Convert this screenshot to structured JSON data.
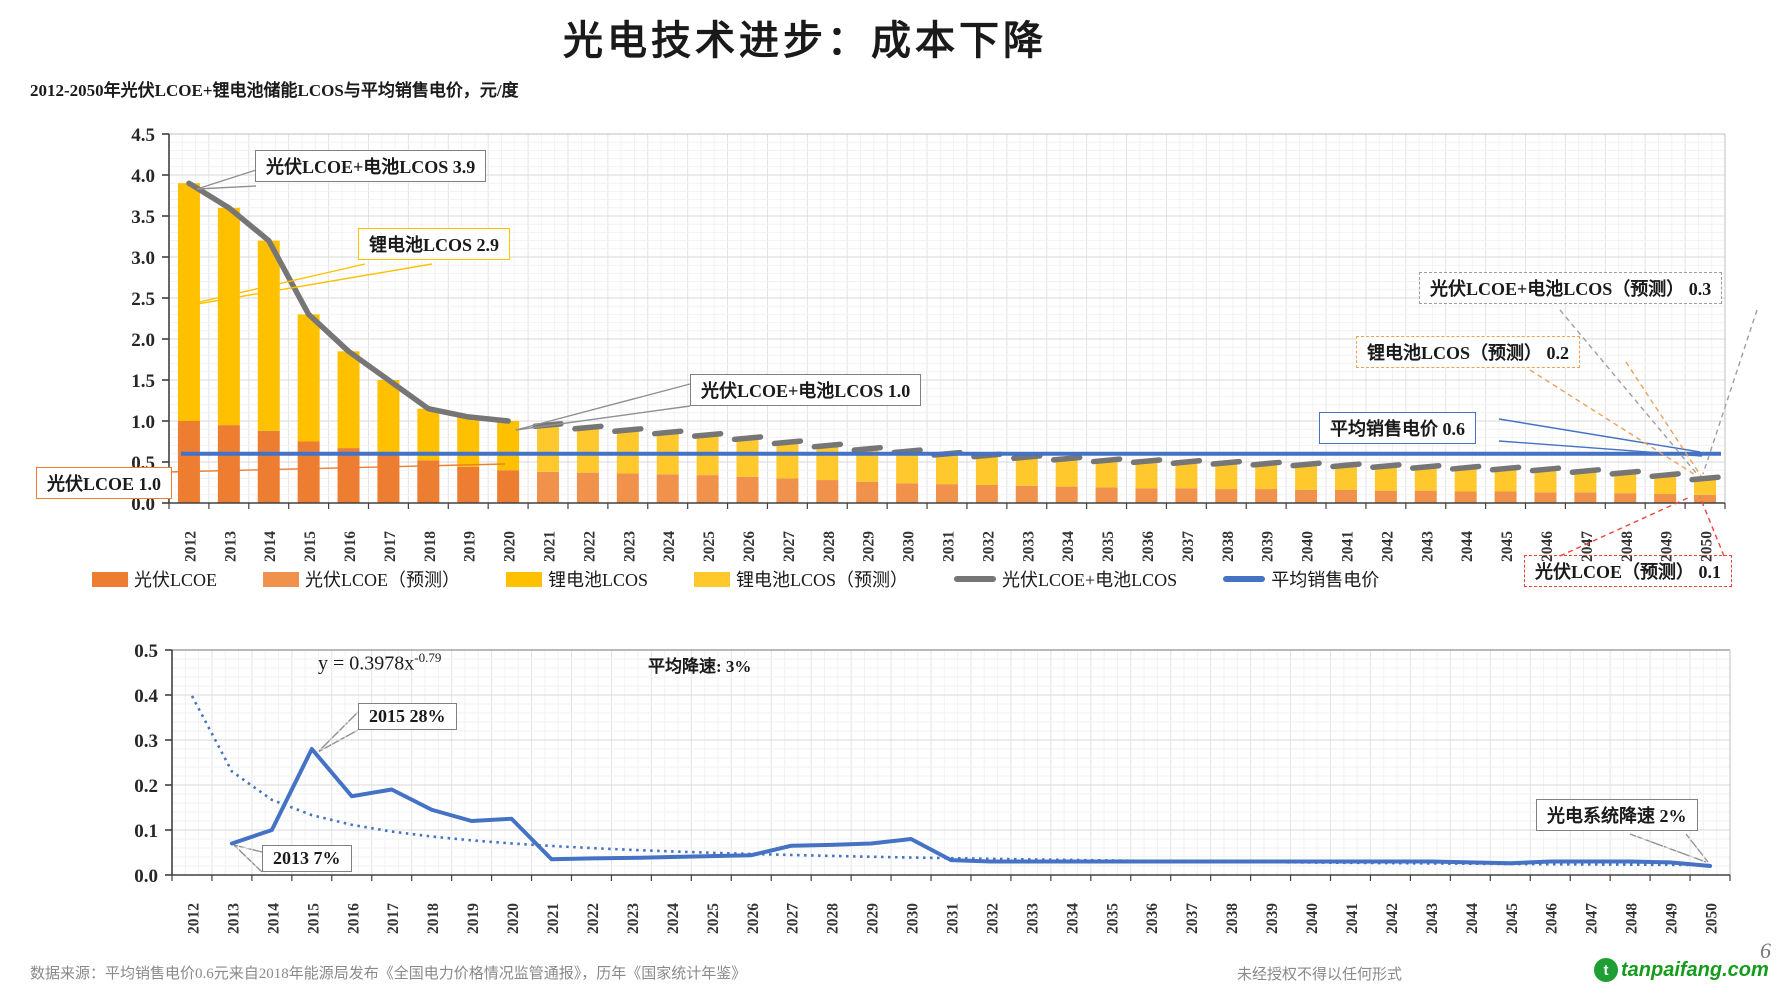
{
  "page": {
    "title": "光电技术进步：成本下降",
    "page_number": "6"
  },
  "footer": {
    "source": "数据来源：平均销售电价0.6元来自2018年能源局发布《全国电力价格情况监管通报》，历年《国家统计年鉴》",
    "rights": "未经授权不得以任何形式",
    "logo_text": "tanpaifang.com"
  },
  "colors": {
    "pv_orange": "#ED7D31",
    "pv_orange_forecast": "#F0914C",
    "battery_yellow": "#FFC000",
    "battery_yellow_forecast": "#FFC92E",
    "total_gray": "#767676",
    "avg_blue": "#4472C4",
    "grid_major": "#dadada",
    "grid_minor": "#f2f2f2",
    "axis": "#404040"
  },
  "chart_data": [
    {
      "type": "bar",
      "title": "2012-2050年光伏LCOE+锂电池储能LCOS与平均销售电价，元/度",
      "ylabel": "元/度",
      "ylim": [
        0,
        4.5
      ],
      "yticks": [
        "0.0",
        "0.5",
        "1.0",
        "1.5",
        "2.0",
        "2.5",
        "3.0",
        "3.5",
        "4.0",
        "4.5"
      ],
      "categories": [
        2012,
        2013,
        2014,
        2015,
        2016,
        2017,
        2018,
        2019,
        2020,
        2021,
        2022,
        2023,
        2024,
        2025,
        2026,
        2027,
        2028,
        2029,
        2030,
        2031,
        2032,
        2033,
        2034,
        2035,
        2036,
        2037,
        2038,
        2039,
        2040,
        2041,
        2042,
        2043,
        2044,
        2045,
        2046,
        2047,
        2048,
        2049,
        2050
      ],
      "series": [
        {
          "name": "光伏LCOE",
          "type": "bar",
          "color": "#ED7D31",
          "values": [
            1.0,
            0.95,
            0.88,
            0.75,
            0.67,
            0.61,
            0.52,
            0.44,
            0.4,
            null,
            null,
            null,
            null,
            null,
            null,
            null,
            null,
            null,
            null,
            null,
            null,
            null,
            null,
            null,
            null,
            null,
            null,
            null,
            null,
            null,
            null,
            null,
            null,
            null,
            null,
            null,
            null,
            null,
            null
          ]
        },
        {
          "name": "光伏LCOE（预测）",
          "type": "bar",
          "color": "#F0914C",
          "values": [
            null,
            null,
            null,
            null,
            null,
            null,
            null,
            null,
            null,
            0.38,
            0.37,
            0.36,
            0.35,
            0.34,
            0.32,
            0.3,
            0.28,
            0.26,
            0.24,
            0.23,
            0.22,
            0.21,
            0.2,
            0.19,
            0.18,
            0.18,
            0.17,
            0.17,
            0.16,
            0.16,
            0.15,
            0.15,
            0.14,
            0.14,
            0.13,
            0.13,
            0.12,
            0.11,
            0.1
          ]
        },
        {
          "name": "锂电池LCOS",
          "type": "bar",
          "color": "#FFC000",
          "values": [
            2.9,
            2.65,
            2.32,
            1.55,
            1.18,
            0.89,
            0.63,
            0.61,
            0.6,
            null,
            null,
            null,
            null,
            null,
            null,
            null,
            null,
            null,
            null,
            null,
            null,
            null,
            null,
            null,
            null,
            null,
            null,
            null,
            null,
            null,
            null,
            null,
            null,
            null,
            null,
            null,
            null,
            null,
            null
          ]
        },
        {
          "name": "锂电池LCOS（预测）",
          "type": "bar",
          "color": "#FFC92E",
          "values": [
            null,
            null,
            null,
            null,
            null,
            null,
            null,
            null,
            null,
            0.57,
            0.55,
            0.53,
            0.51,
            0.49,
            0.47,
            0.44,
            0.42,
            0.4,
            0.39,
            0.37,
            0.36,
            0.35,
            0.34,
            0.33,
            0.33,
            0.32,
            0.32,
            0.31,
            0.31,
            0.3,
            0.3,
            0.29,
            0.29,
            0.28,
            0.28,
            0.26,
            0.25,
            0.23,
            0.2
          ]
        },
        {
          "name": "光伏LCOE+电池LCOS",
          "type": "line",
          "color": "#767676",
          "solid_until": 2020,
          "values": [
            3.9,
            3.6,
            3.2,
            2.3,
            1.85,
            1.5,
            1.15,
            1.05,
            1.0,
            0.95,
            0.92,
            0.89,
            0.86,
            0.83,
            0.79,
            0.74,
            0.7,
            0.66,
            0.63,
            0.6,
            0.58,
            0.56,
            0.54,
            0.52,
            0.51,
            0.5,
            0.49,
            0.48,
            0.47,
            0.46,
            0.45,
            0.44,
            0.43,
            0.42,
            0.41,
            0.39,
            0.37,
            0.34,
            0.3
          ]
        },
        {
          "name": "平均销售电价",
          "type": "line",
          "color": "#4472C4",
          "constant": 0.6
        }
      ],
      "annotations": {
        "total_2012": "光伏LCOE+电池LCOS 3.9",
        "battery_2012": "锂电池LCOS 2.9",
        "total_2020": "光伏LCOE+电池LCOS 1.0",
        "pv_2012": "光伏LCOE 1.0",
        "total_forecast": "光伏LCOE+电池LCOS（预测）  0.3",
        "battery_forecast": "锂电池LCOS（预测） 0.2",
        "avg_price": "平均销售电价 0.6",
        "pv_forecast": "光伏LCOE（预测）  0.1"
      }
    },
    {
      "type": "line",
      "ylim": [
        0,
        0.5
      ],
      "yticks": [
        "0.0",
        "0.1",
        "0.2",
        "0.3",
        "0.4",
        "0.5"
      ],
      "categories": [
        2012,
        2013,
        2014,
        2015,
        2016,
        2017,
        2018,
        2019,
        2020,
        2021,
        2022,
        2023,
        2024,
        2025,
        2026,
        2027,
        2028,
        2029,
        2030,
        2031,
        2032,
        2033,
        2034,
        2035,
        2036,
        2037,
        2038,
        2039,
        2040,
        2041,
        2042,
        2043,
        2044,
        2045,
        2046,
        2047,
        2048,
        2049,
        2050
      ],
      "series": [
        {
          "name": "光电系统降速",
          "type": "line",
          "color": "#4472C4",
          "values": [
            null,
            0.07,
            0.1,
            0.28,
            0.175,
            0.19,
            0.145,
            0.12,
            0.125,
            0.035,
            0.037,
            0.038,
            0.04,
            0.042,
            0.044,
            0.065,
            0.067,
            0.07,
            0.08,
            0.033,
            0.03,
            0.03,
            0.03,
            0.03,
            0.03,
            0.03,
            0.03,
            0.03,
            0.03,
            0.03,
            0.03,
            0.03,
            0.028,
            0.026,
            0.03,
            0.03,
            0.03,
            0.028,
            0.02
          ]
        },
        {
          "name": "拟合曲线",
          "type": "line",
          "style": "dotted",
          "color": "#4472C4",
          "fit": {
            "a": 0.3978,
            "b": -0.79
          }
        }
      ],
      "annotations": {
        "equation_base": "y = 0.3978x",
        "equation_exp": "-0.79",
        "avg_decline": "平均降速: 3%",
        "peak": "2015 28%",
        "start": "2013 7%",
        "end": "光电系统降速 2%"
      }
    }
  ]
}
